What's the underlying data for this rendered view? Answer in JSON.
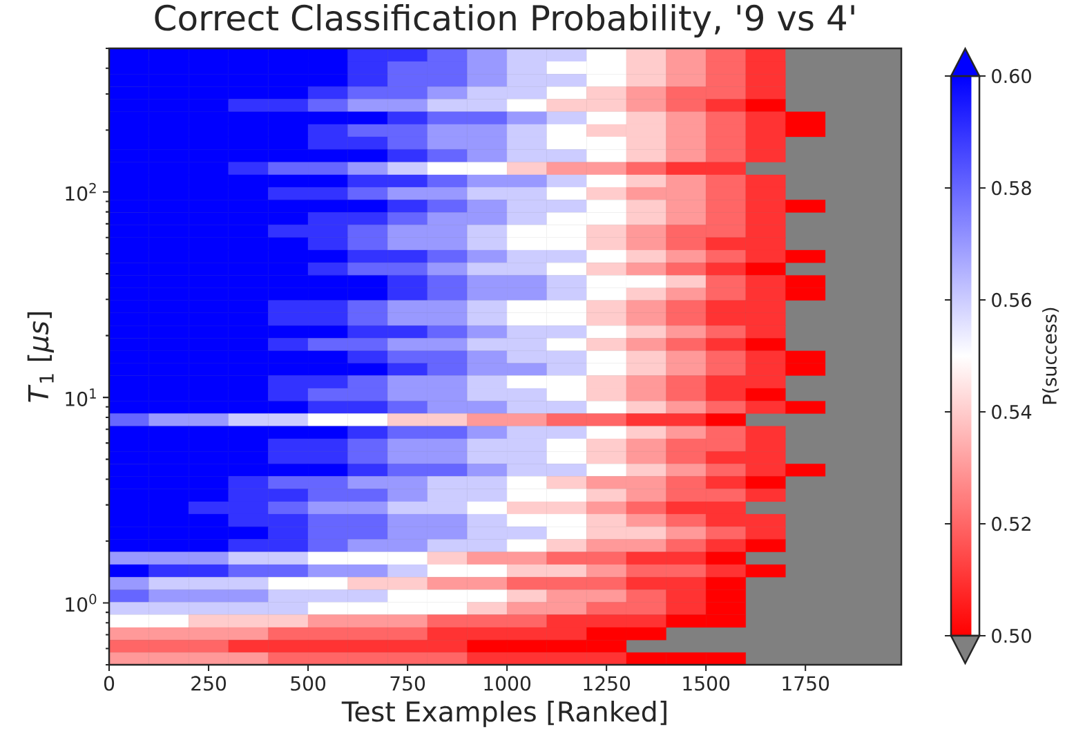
{
  "chart_data": {
    "type": "heatmap",
    "title": "Correct Classification Probability, '9 vs 4'",
    "xlabel": "Test Examples [Ranked]",
    "ylabel": "*T*$_{1}$ [*μs*]",
    "clabel": "P(success)",
    "x": [
      50,
      150,
      250,
      350,
      450,
      550,
      650,
      750,
      850,
      950,
      1050,
      1150,
      1250,
      1350,
      1450,
      1550,
      1650,
      1750
    ],
    "y": [
      463,
      402,
      349,
      303,
      264,
      229,
      199,
      173,
      150,
      130,
      113,
      98.2,
      85.3,
      74.1,
      64.4,
      56.0,
      48.5,
      42.2,
      36.6,
      31.8,
      27.7,
      24.0,
      20.8,
      18.1,
      15.7,
      13.7,
      11.9,
      10.3,
      8.95,
      7.78,
      6.76,
      5.86,
      5.09,
      4.43,
      3.85,
      3.34,
      2.9,
      2.52,
      2.19,
      1.9,
      1.65,
      1.43,
      1.245,
      1.08,
      0.94,
      0.816,
      0.708,
      0.615,
      0.535
    ],
    "cells": [
      [
        0.6,
        0.6,
        0.6,
        0.6,
        0.6,
        0.6,
        0.59,
        0.59,
        0.58,
        0.57,
        0.56,
        0.56,
        0.55,
        0.54,
        0.53,
        0.52,
        0.51,
        null
      ],
      [
        0.6,
        0.6,
        0.6,
        0.6,
        0.6,
        0.6,
        0.59,
        0.58,
        0.58,
        0.57,
        0.56,
        0.55,
        0.55,
        0.54,
        0.53,
        0.52,
        0.51,
        null
      ],
      [
        0.6,
        0.6,
        0.6,
        0.6,
        0.6,
        0.6,
        0.59,
        0.58,
        0.58,
        0.57,
        0.56,
        0.56,
        0.55,
        0.54,
        0.53,
        0.52,
        0.51,
        null
      ],
      [
        0.6,
        0.6,
        0.6,
        0.6,
        0.6,
        0.59,
        0.58,
        0.58,
        0.57,
        0.56,
        0.56,
        0.55,
        0.54,
        0.53,
        0.52,
        0.52,
        0.51,
        null
      ],
      [
        0.6,
        0.6,
        0.6,
        0.59,
        0.59,
        0.58,
        0.57,
        0.57,
        0.56,
        0.56,
        0.55,
        0.54,
        0.54,
        0.53,
        0.52,
        0.51,
        0.5,
        null
      ],
      [
        0.6,
        0.6,
        0.6,
        0.6,
        0.6,
        0.6,
        0.6,
        0.59,
        0.58,
        0.58,
        0.57,
        0.56,
        0.55,
        0.54,
        0.53,
        0.52,
        0.51,
        0.5
      ],
      [
        0.6,
        0.6,
        0.6,
        0.6,
        0.6,
        0.59,
        0.58,
        0.58,
        0.57,
        0.57,
        0.56,
        0.55,
        0.54,
        0.54,
        0.53,
        0.52,
        0.51,
        0.5
      ],
      [
        0.6,
        0.6,
        0.6,
        0.6,
        0.6,
        0.59,
        0.59,
        0.58,
        0.57,
        0.57,
        0.56,
        0.55,
        0.55,
        0.54,
        0.53,
        0.52,
        0.51,
        null
      ],
      [
        0.6,
        0.6,
        0.6,
        0.6,
        0.6,
        0.6,
        0.6,
        0.59,
        0.58,
        0.57,
        0.56,
        0.56,
        0.55,
        0.54,
        0.53,
        0.52,
        0.51,
        null
      ],
      [
        0.6,
        0.6,
        0.6,
        0.59,
        0.58,
        0.58,
        0.57,
        0.56,
        0.55,
        0.55,
        0.54,
        0.53,
        0.53,
        0.52,
        0.51,
        0.51,
        null,
        null
      ],
      [
        0.6,
        0.6,
        0.6,
        0.6,
        0.6,
        0.6,
        0.59,
        0.59,
        0.58,
        0.57,
        0.57,
        0.56,
        0.55,
        0.54,
        0.53,
        0.52,
        0.51,
        null
      ],
      [
        0.6,
        0.6,
        0.6,
        0.6,
        0.59,
        0.59,
        0.58,
        0.57,
        0.57,
        0.56,
        0.56,
        0.55,
        0.54,
        0.53,
        0.53,
        0.52,
        0.51,
        null
      ],
      [
        0.6,
        0.6,
        0.6,
        0.6,
        0.6,
        0.6,
        0.6,
        0.59,
        0.58,
        0.57,
        0.56,
        0.56,
        0.55,
        0.54,
        0.53,
        0.52,
        0.51,
        0.5
      ],
      [
        0.6,
        0.6,
        0.6,
        0.6,
        0.6,
        0.59,
        0.59,
        0.58,
        0.57,
        0.57,
        0.56,
        0.55,
        0.55,
        0.54,
        0.53,
        0.52,
        0.51,
        null
      ],
      [
        0.6,
        0.6,
        0.6,
        0.6,
        0.59,
        0.59,
        0.58,
        0.57,
        0.57,
        0.56,
        0.55,
        0.55,
        0.54,
        0.53,
        0.52,
        0.52,
        0.51,
        null
      ],
      [
        0.6,
        0.6,
        0.6,
        0.6,
        0.6,
        0.59,
        0.58,
        0.57,
        0.57,
        0.56,
        0.55,
        0.55,
        0.54,
        0.53,
        0.52,
        0.51,
        0.51,
        null
      ],
      [
        0.6,
        0.6,
        0.6,
        0.6,
        0.6,
        0.6,
        0.59,
        0.59,
        0.58,
        0.57,
        0.56,
        0.56,
        0.55,
        0.54,
        0.53,
        0.52,
        0.51,
        0.5
      ],
      [
        0.6,
        0.6,
        0.6,
        0.6,
        0.6,
        0.59,
        0.58,
        0.58,
        0.57,
        0.56,
        0.56,
        0.55,
        0.54,
        0.53,
        0.52,
        0.51,
        0.5,
        null
      ],
      [
        0.6,
        0.6,
        0.6,
        0.6,
        0.6,
        0.6,
        0.6,
        0.59,
        0.58,
        0.57,
        0.57,
        0.56,
        0.55,
        0.55,
        0.54,
        0.52,
        0.51,
        0.5
      ],
      [
        0.6,
        0.6,
        0.6,
        0.6,
        0.6,
        0.6,
        0.6,
        0.59,
        0.58,
        0.57,
        0.57,
        0.56,
        0.55,
        0.54,
        0.53,
        0.52,
        0.51,
        0.5
      ],
      [
        0.6,
        0.6,
        0.6,
        0.6,
        0.59,
        0.59,
        0.58,
        0.57,
        0.57,
        0.56,
        0.55,
        0.55,
        0.54,
        0.53,
        0.52,
        0.51,
        0.51,
        null
      ],
      [
        0.6,
        0.6,
        0.6,
        0.6,
        0.59,
        0.59,
        0.58,
        0.57,
        0.57,
        0.56,
        0.55,
        0.55,
        0.54,
        0.53,
        0.52,
        0.51,
        0.51,
        null
      ],
      [
        0.6,
        0.6,
        0.6,
        0.6,
        0.6,
        0.6,
        0.59,
        0.59,
        0.58,
        0.57,
        0.56,
        0.56,
        0.55,
        0.54,
        0.53,
        0.52,
        0.51,
        null
      ],
      [
        0.6,
        0.6,
        0.6,
        0.6,
        0.59,
        0.58,
        0.58,
        0.57,
        0.57,
        0.56,
        0.56,
        0.55,
        0.54,
        0.53,
        0.52,
        0.51,
        0.5,
        null
      ],
      [
        0.6,
        0.6,
        0.6,
        0.6,
        0.6,
        0.6,
        0.59,
        0.58,
        0.58,
        0.57,
        0.56,
        0.56,
        0.55,
        0.54,
        0.53,
        0.52,
        0.51,
        0.5
      ],
      [
        0.6,
        0.6,
        0.6,
        0.6,
        0.6,
        0.6,
        0.6,
        0.59,
        0.58,
        0.57,
        0.57,
        0.56,
        0.55,
        0.54,
        0.53,
        0.52,
        0.51,
        0.5
      ],
      [
        0.6,
        0.6,
        0.6,
        0.6,
        0.59,
        0.59,
        0.58,
        0.57,
        0.57,
        0.56,
        0.55,
        0.55,
        0.54,
        0.53,
        0.52,
        0.51,
        0.51,
        null
      ],
      [
        0.6,
        0.6,
        0.6,
        0.6,
        0.59,
        0.58,
        0.58,
        0.57,
        0.57,
        0.56,
        0.56,
        0.55,
        0.54,
        0.53,
        0.52,
        0.51,
        0.5,
        null
      ],
      [
        0.6,
        0.6,
        0.6,
        0.6,
        0.6,
        0.59,
        0.59,
        0.58,
        0.57,
        0.57,
        0.56,
        0.56,
        0.55,
        0.54,
        0.53,
        0.52,
        0.51,
        0.5
      ],
      [
        0.58,
        0.57,
        0.57,
        0.56,
        0.56,
        0.55,
        0.55,
        0.54,
        0.54,
        0.53,
        0.53,
        0.52,
        0.52,
        0.51,
        0.51,
        0.5,
        null,
        null
      ],
      [
        0.6,
        0.6,
        0.6,
        0.6,
        0.6,
        0.6,
        0.59,
        0.58,
        0.58,
        0.57,
        0.56,
        0.56,
        0.55,
        0.54,
        0.53,
        0.52,
        0.51,
        null
      ],
      [
        0.6,
        0.6,
        0.6,
        0.6,
        0.59,
        0.59,
        0.58,
        0.57,
        0.57,
        0.56,
        0.56,
        0.55,
        0.54,
        0.53,
        0.52,
        0.52,
        0.51,
        null
      ],
      [
        0.6,
        0.6,
        0.6,
        0.6,
        0.59,
        0.59,
        0.58,
        0.57,
        0.57,
        0.56,
        0.56,
        0.55,
        0.54,
        0.53,
        0.52,
        0.51,
        0.51,
        null
      ],
      [
        0.6,
        0.6,
        0.6,
        0.6,
        0.6,
        0.6,
        0.59,
        0.58,
        0.58,
        0.57,
        0.56,
        0.56,
        0.55,
        0.54,
        0.53,
        0.52,
        0.51,
        0.5
      ],
      [
        0.6,
        0.6,
        0.6,
        0.59,
        0.58,
        0.58,
        0.57,
        0.57,
        0.56,
        0.56,
        0.55,
        0.54,
        0.53,
        0.53,
        0.52,
        0.51,
        0.5,
        null
      ],
      [
        0.6,
        0.6,
        0.6,
        0.59,
        0.59,
        0.58,
        0.58,
        0.57,
        0.56,
        0.56,
        0.55,
        0.55,
        0.54,
        0.53,
        0.52,
        0.52,
        0.51,
        null
      ],
      [
        0.6,
        0.6,
        0.59,
        0.59,
        0.58,
        0.57,
        0.57,
        0.56,
        0.56,
        0.55,
        0.54,
        0.54,
        0.53,
        0.52,
        0.51,
        0.51,
        null,
        null
      ],
      [
        0.6,
        0.6,
        0.6,
        0.59,
        0.59,
        0.58,
        0.58,
        0.57,
        0.57,
        0.56,
        0.55,
        0.55,
        0.54,
        0.53,
        0.52,
        0.51,
        0.51,
        null
      ],
      [
        0.6,
        0.6,
        0.6,
        0.6,
        0.59,
        0.58,
        0.58,
        0.57,
        0.57,
        0.56,
        0.56,
        0.55,
        0.54,
        0.54,
        0.53,
        0.52,
        0.51,
        null
      ],
      [
        0.6,
        0.6,
        0.6,
        0.59,
        0.59,
        0.58,
        0.57,
        0.57,
        0.56,
        0.56,
        0.55,
        0.54,
        0.53,
        0.53,
        0.52,
        0.51,
        0.5,
        null
      ],
      [
        0.57,
        0.57,
        0.57,
        0.56,
        0.56,
        0.55,
        0.55,
        0.55,
        0.54,
        0.53,
        0.53,
        0.52,
        0.52,
        0.51,
        0.51,
        0.5,
        null,
        null
      ],
      [
        0.6,
        0.59,
        0.59,
        0.58,
        0.58,
        0.57,
        0.57,
        0.56,
        0.55,
        0.55,
        0.54,
        0.54,
        0.53,
        0.52,
        0.52,
        0.51,
        0.5,
        null
      ],
      [
        0.57,
        0.56,
        0.56,
        0.56,
        0.55,
        0.55,
        0.54,
        0.54,
        0.53,
        0.53,
        0.52,
        0.52,
        0.52,
        0.51,
        0.51,
        0.5,
        null,
        null
      ],
      [
        0.58,
        0.57,
        0.57,
        0.57,
        0.56,
        0.56,
        0.56,
        0.55,
        0.55,
        0.55,
        0.54,
        0.53,
        0.53,
        0.52,
        0.51,
        0.5,
        null,
        null
      ],
      [
        0.56,
        0.56,
        0.56,
        0.56,
        0.56,
        0.55,
        0.55,
        0.55,
        0.55,
        0.54,
        0.53,
        0.53,
        0.52,
        0.52,
        0.51,
        0.5,
        null,
        null
      ],
      [
        0.55,
        0.55,
        0.54,
        0.54,
        0.54,
        0.53,
        0.53,
        0.53,
        0.52,
        0.52,
        0.52,
        0.51,
        0.51,
        0.51,
        0.5,
        0.5,
        null,
        null
      ],
      [
        0.53,
        0.53,
        0.53,
        0.53,
        0.52,
        0.52,
        0.52,
        0.52,
        0.51,
        0.51,
        0.51,
        0.51,
        0.5,
        0.5,
        null,
        null,
        null,
        null
      ],
      [
        0.52,
        0.52,
        0.52,
        0.51,
        0.51,
        0.51,
        0.51,
        0.51,
        0.51,
        0.5,
        0.5,
        0.5,
        0.5,
        null,
        null,
        null,
        null,
        null
      ],
      [
        0.53,
        0.53,
        0.53,
        0.53,
        0.52,
        0.52,
        0.52,
        0.52,
        0.52,
        0.51,
        0.51,
        0.51,
        0.51,
        0.5,
        0.5,
        0.5,
        null,
        null
      ]
    ],
    "xlim": [
      0,
      1991
    ],
    "xticks": [
      0,
      250,
      500,
      750,
      1000,
      1250,
      1500,
      1750
    ],
    "ylim": [
      0.5,
      500
    ],
    "yticks": [
      {
        "value": 1,
        "label": "10$^{0}$"
      },
      {
        "value": 10,
        "label": "10$^{1}$"
      },
      {
        "value": 100,
        "label": "10$^{2}$"
      }
    ],
    "log": "y",
    "clim": [
      0.5,
      0.6
    ],
    "cticks": [
      {
        "value": 0.5,
        "label": "0.50"
      },
      {
        "value": 0.52,
        "label": "0.52"
      },
      {
        "value": 0.54,
        "label": "0.54"
      },
      {
        "value": 0.56,
        "label": "0.56"
      },
      {
        "value": 0.58,
        "label": "0.58"
      },
      {
        "value": 0.6,
        "label": "0.60"
      }
    ]
  }
}
